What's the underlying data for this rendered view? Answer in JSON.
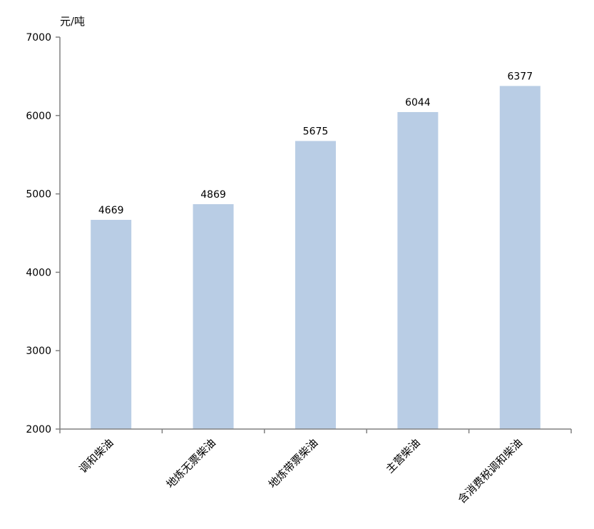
{
  "chart_data": {
    "type": "bar",
    "title": "",
    "xlabel": "",
    "ylabel": "元/吨",
    "categories": [
      "调和柴油",
      "地炼无票柴油",
      "地炼带票柴油",
      "主营柴油",
      "含消费税调和柴油"
    ],
    "values": [
      4669,
      4869,
      5675,
      6044,
      6377
    ],
    "data_labels": [
      "4669",
      "4869",
      "5675",
      "6044",
      "6377"
    ],
    "ylim": [
      2000,
      7000
    ],
    "yticks": [
      2000,
      3000,
      4000,
      5000,
      6000,
      7000
    ],
    "grid": false,
    "legend": "none",
    "bar_color": "#b9cde5",
    "axis_color": "#808080"
  }
}
